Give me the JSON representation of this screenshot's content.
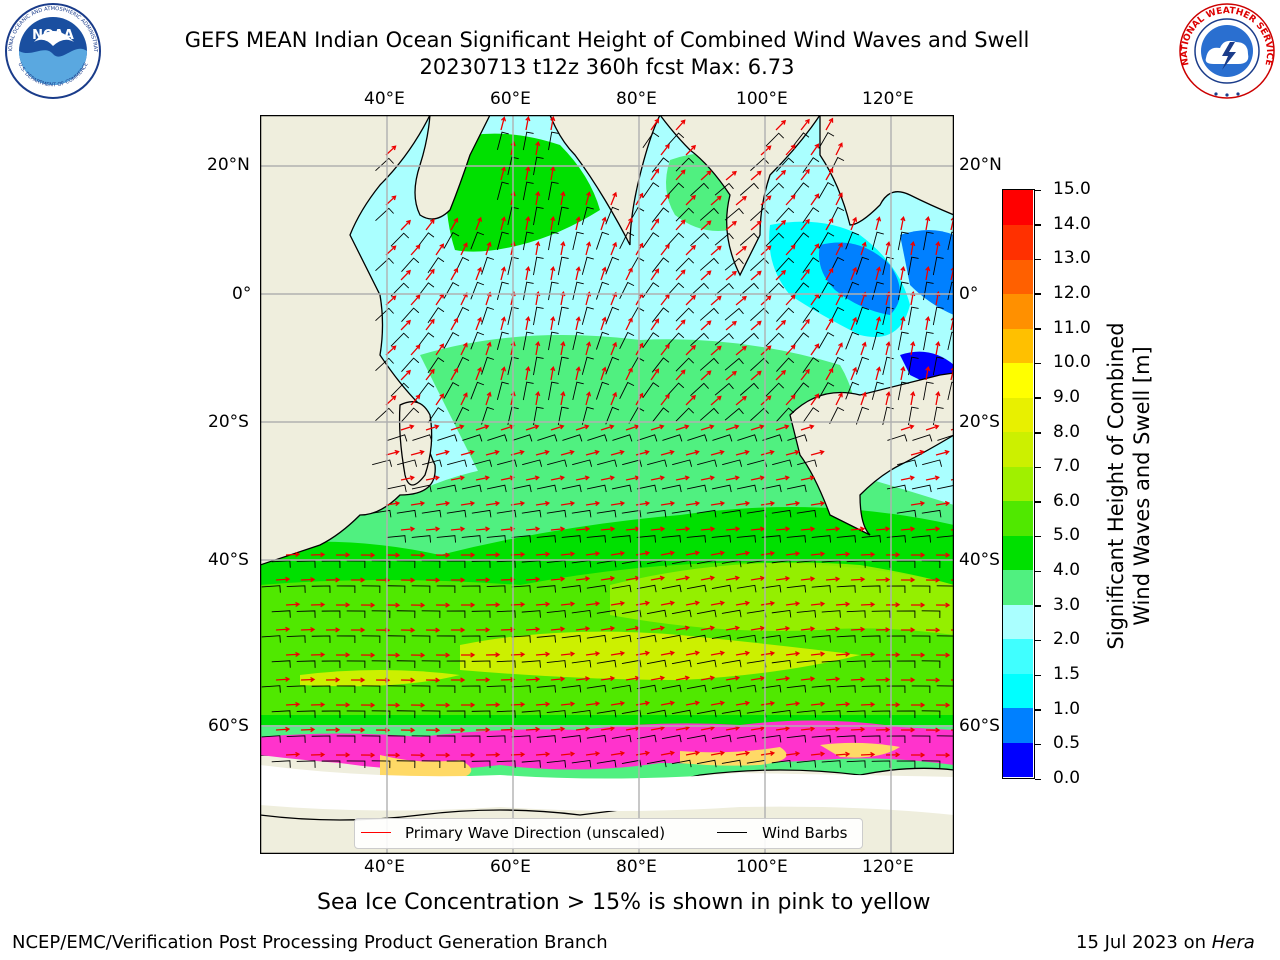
{
  "title": {
    "line1": "GEFS MEAN Indian Ocean Significant Height of Combined Wind Waves and Swell",
    "line2": "20230713 t12z 360h fcst   Max: 6.73"
  },
  "logos": {
    "noaa_text": "NOAA",
    "noaa_ring_top": "NATIONAL OCEANIC AND ATMOSPHERIC ADMINISTRATION",
    "noaa_ring_bottom": "U.S. DEPARTMENT OF COMMERCE",
    "nws_ring": "NATIONAL WEATHER SERVICE"
  },
  "map": {
    "lon_labels": [
      "40°E",
      "60°E",
      "80°E",
      "100°E",
      "120°E"
    ],
    "lat_labels": [
      "20°N",
      "0°",
      "20°S",
      "40°S",
      "60°S"
    ],
    "legend": {
      "wave_label": "Primary Wave Direction (unscaled)",
      "wind_label": "Wind Barbs",
      "wave_color": "#ff0000",
      "wind_color": "#000000"
    },
    "colors": {
      "land": "#efeedd",
      "ice_pink": "#ff33cc",
      "ice_yellow": "#ffd966",
      "grid": "#b0b0b0"
    }
  },
  "colorbar": {
    "label_line1": "Significant Height of Combined",
    "label_line2": "Wind Waves and Swell [m]",
    "ticks": [
      "0.0",
      "0.5",
      "1.0",
      "1.5",
      "2.0",
      "3.0",
      "4.0",
      "5.0",
      "6.0",
      "7.0",
      "8.0",
      "9.0",
      "10.0",
      "11.0",
      "12.0",
      "13.0",
      "14.0",
      "15.0"
    ],
    "colors": [
      "#0000ff",
      "#0080ff",
      "#00ffff",
      "#40ffff",
      "#aaffff",
      "#50f080",
      "#00e000",
      "#50e800",
      "#a0f000",
      "#ccf000",
      "#e8f000",
      "#ffff00",
      "#ffc000",
      "#ff9000",
      "#ff6000",
      "#ff3000",
      "#ff0000"
    ]
  },
  "ice_note": "Sea Ice Concentration > 15% is shown in pink to yellow",
  "footer": {
    "left": "NCEP/EMC/Verification Post Processing Product Generation Branch",
    "date": "15 Jul 2023 on ",
    "machine": "Hera"
  }
}
